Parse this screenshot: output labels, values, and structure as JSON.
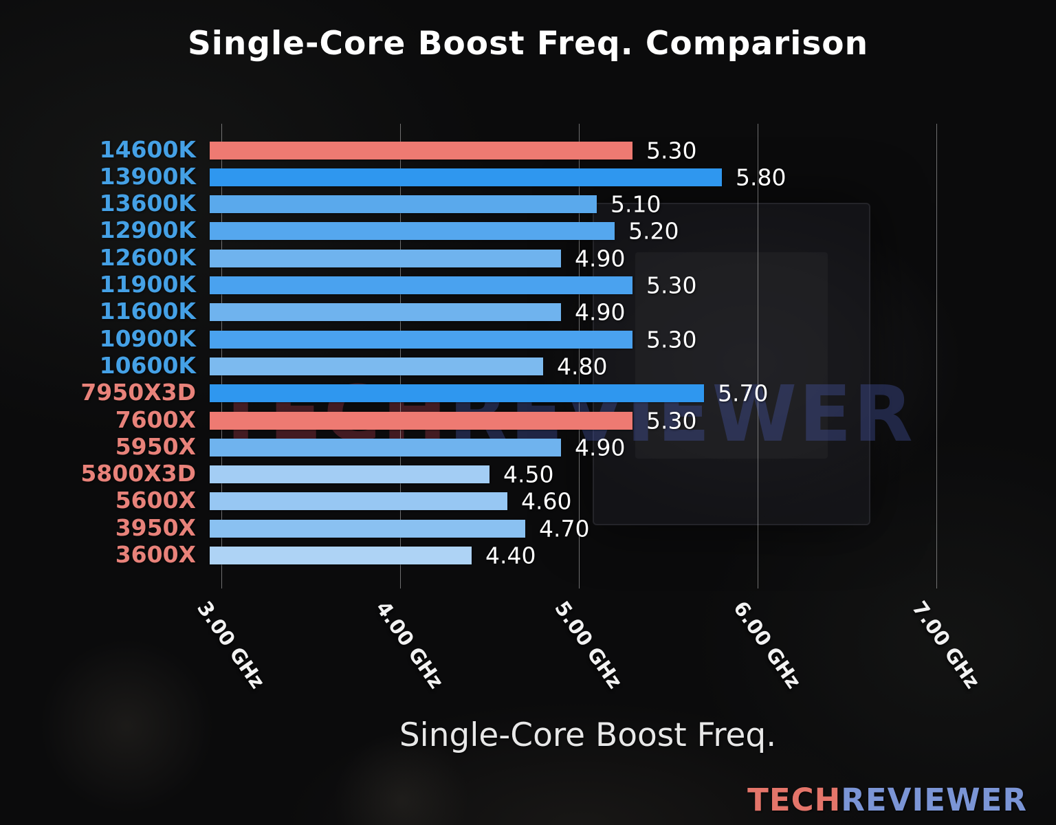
{
  "title": "Single-Core Boost Freq. Comparison",
  "xlabel": "Single-Core Boost Freq.",
  "watermark": {
    "part1": "TECH",
    "part2": "REVIEWER"
  },
  "logo": {
    "part1": "TECH",
    "part2": "REVIEWER"
  },
  "chart_data": {
    "type": "bar",
    "orientation": "horizontal",
    "title": "Single-Core Boost Freq. Comparison",
    "xlabel": "Single-Core Boost Freq.",
    "ylabel": "",
    "xlim": [
      3.0,
      7.33
    ],
    "grid": true,
    "legend": "none",
    "categories": [
      "14600K",
      "13900K",
      "13600K",
      "12900K",
      "12600K",
      "11900K",
      "11600K",
      "10900K",
      "10600K",
      "7950X3D",
      "7600X",
      "5950X",
      "5800X3D",
      "5600X",
      "3950X",
      "3600X"
    ],
    "values": [
      5.3,
      5.8,
      5.1,
      5.2,
      4.9,
      5.3,
      4.9,
      5.3,
      4.8,
      5.7,
      5.3,
      4.9,
      4.5,
      4.6,
      4.7,
      4.4
    ],
    "value_labels": [
      "5.30",
      "5.80",
      "5.10",
      "5.20",
      "4.90",
      "5.30",
      "4.90",
      "5.30",
      "4.80",
      "5.70",
      "5.30",
      "4.90",
      "4.50",
      "4.60",
      "4.70",
      "4.40"
    ],
    "bar_colors": [
      "#ee7a72",
      "#2f97ef",
      "#5aa9ec",
      "#55a7ee",
      "#6fb3ee",
      "#4aa2ef",
      "#6fb3ee",
      "#4aa2ef",
      "#7cbaef",
      "#2f97ef",
      "#ee7a72",
      "#6fb3ee",
      "#a3cdf4",
      "#97c7f3",
      "#8ac1f1",
      "#aed3f5"
    ],
    "category_colors": [
      "#45a1e6",
      "#45a1e6",
      "#45a1e6",
      "#45a1e6",
      "#45a1e6",
      "#45a1e6",
      "#45a1e6",
      "#45a1e6",
      "#45a1e6",
      "#e8827a",
      "#e8827a",
      "#e8827a",
      "#e8827a",
      "#e8827a",
      "#e8827a",
      "#e8827a"
    ],
    "highlight_color": "#ee7a72",
    "x_ticks": [
      {
        "value": 3.0,
        "label": "3.00 GHz"
      },
      {
        "value": 4.0,
        "label": "4.00 GHz"
      },
      {
        "value": 5.0,
        "label": "5.00 GHz"
      },
      {
        "value": 6.0,
        "label": "6.00 GHz"
      },
      {
        "value": 7.0,
        "label": "7.00 GHz"
      }
    ]
  }
}
